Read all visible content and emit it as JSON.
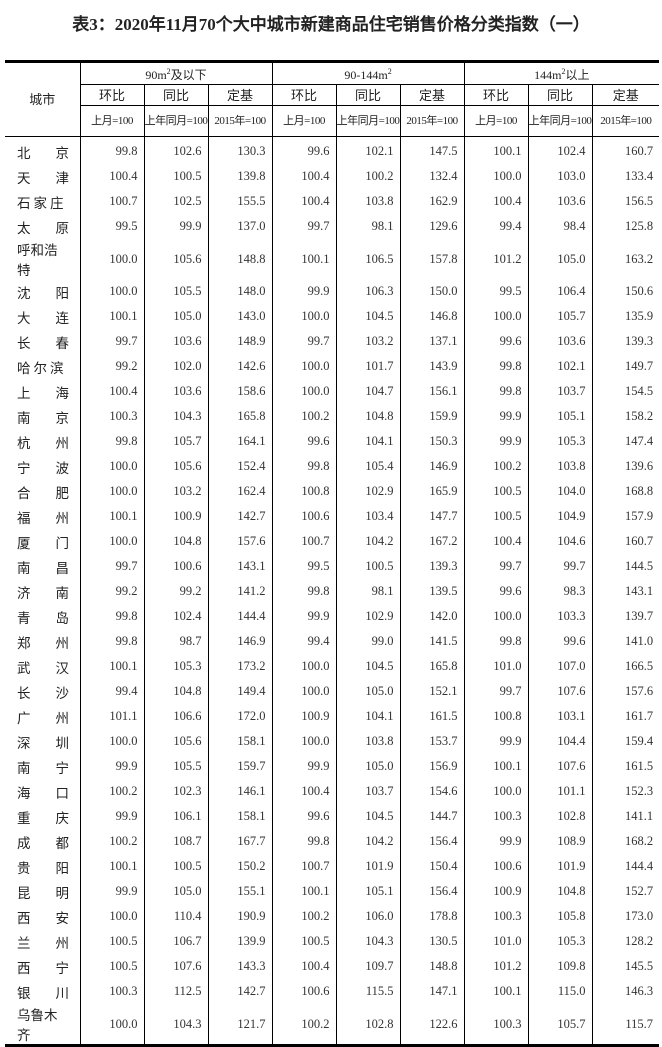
{
  "title": "表3：2020年11月70个大中城市新建商品住宅销售价格分类指数（一）",
  "header": {
    "city_label": "城市",
    "groups": [
      {
        "pre": "90m",
        "sup": "2",
        "post": "及以下"
      },
      {
        "pre": "90-144m",
        "sup": "2",
        "post": ""
      },
      {
        "pre": "144m",
        "sup": "2",
        "post": "以上"
      }
    ],
    "sub_labels": [
      "环比",
      "同比",
      "定基"
    ],
    "base_labels": [
      "上月=100",
      "上年同月=100",
      "2015年=100"
    ]
  },
  "rows": [
    {
      "city": "北京",
      "values": [
        "99.8",
        "102.6",
        "130.3",
        "99.6",
        "102.1",
        "147.5",
        "100.1",
        "102.4",
        "160.7"
      ]
    },
    {
      "city": "天津",
      "values": [
        "100.4",
        "100.5",
        "139.8",
        "100.4",
        "100.2",
        "132.4",
        "100.0",
        "103.0",
        "133.4"
      ]
    },
    {
      "city": "石家庄",
      "values": [
        "100.7",
        "102.5",
        "155.5",
        "100.4",
        "103.8",
        "162.9",
        "100.4",
        "103.6",
        "156.5"
      ]
    },
    {
      "city": "太原",
      "values": [
        "99.5",
        "99.9",
        "137.0",
        "99.7",
        "98.1",
        "129.6",
        "99.4",
        "98.4",
        "125.8"
      ]
    },
    {
      "city": "呼和浩特",
      "values": [
        "100.0",
        "105.6",
        "148.8",
        "100.1",
        "106.5",
        "157.8",
        "101.2",
        "105.0",
        "163.2"
      ]
    },
    {
      "city": "沈阳",
      "values": [
        "100.0",
        "105.5",
        "148.0",
        "99.9",
        "106.3",
        "150.0",
        "99.5",
        "106.4",
        "150.6"
      ]
    },
    {
      "city": "大连",
      "values": [
        "100.1",
        "105.0",
        "143.0",
        "100.0",
        "104.5",
        "146.8",
        "100.0",
        "105.7",
        "135.9"
      ]
    },
    {
      "city": "长春",
      "values": [
        "99.7",
        "103.6",
        "148.9",
        "99.7",
        "103.2",
        "137.1",
        "99.6",
        "103.6",
        "139.3"
      ]
    },
    {
      "city": "哈尔滨",
      "values": [
        "99.2",
        "102.0",
        "142.6",
        "100.0",
        "101.7",
        "143.9",
        "99.8",
        "102.1",
        "149.7"
      ]
    },
    {
      "city": "上海",
      "values": [
        "100.4",
        "103.6",
        "158.6",
        "100.0",
        "104.7",
        "156.1",
        "99.8",
        "103.7",
        "154.5"
      ]
    },
    {
      "city": "南京",
      "values": [
        "100.3",
        "104.3",
        "165.8",
        "100.2",
        "104.8",
        "159.9",
        "99.9",
        "105.1",
        "158.2"
      ]
    },
    {
      "city": "杭州",
      "values": [
        "99.8",
        "105.7",
        "164.1",
        "99.6",
        "104.1",
        "150.3",
        "99.9",
        "105.3",
        "147.4"
      ]
    },
    {
      "city": "宁波",
      "values": [
        "100.0",
        "105.6",
        "152.4",
        "99.8",
        "105.4",
        "146.9",
        "100.2",
        "103.8",
        "139.6"
      ]
    },
    {
      "city": "合肥",
      "values": [
        "100.0",
        "103.2",
        "162.4",
        "100.8",
        "102.9",
        "165.9",
        "100.5",
        "104.0",
        "168.8"
      ]
    },
    {
      "city": "福州",
      "values": [
        "100.1",
        "100.9",
        "142.7",
        "100.6",
        "103.4",
        "147.7",
        "100.5",
        "104.9",
        "157.9"
      ]
    },
    {
      "city": "厦门",
      "values": [
        "100.0",
        "104.8",
        "157.6",
        "100.7",
        "104.2",
        "167.2",
        "100.4",
        "104.6",
        "160.7"
      ]
    },
    {
      "city": "南昌",
      "values": [
        "99.7",
        "100.6",
        "143.1",
        "99.5",
        "100.5",
        "139.3",
        "99.7",
        "99.7",
        "144.5"
      ]
    },
    {
      "city": "济南",
      "values": [
        "99.2",
        "99.2",
        "141.2",
        "99.8",
        "98.1",
        "139.5",
        "99.6",
        "98.3",
        "143.1"
      ]
    },
    {
      "city": "青岛",
      "values": [
        "99.8",
        "102.4",
        "144.4",
        "99.9",
        "102.9",
        "142.0",
        "100.0",
        "103.3",
        "139.7"
      ]
    },
    {
      "city": "郑州",
      "values": [
        "99.8",
        "98.7",
        "146.9",
        "99.4",
        "99.0",
        "141.5",
        "99.8",
        "99.6",
        "141.0"
      ]
    },
    {
      "city": "武汉",
      "values": [
        "100.1",
        "105.3",
        "173.2",
        "100.0",
        "104.5",
        "165.8",
        "101.0",
        "107.0",
        "166.5"
      ]
    },
    {
      "city": "长沙",
      "values": [
        "99.4",
        "104.8",
        "149.4",
        "100.0",
        "105.0",
        "152.1",
        "99.7",
        "107.6",
        "157.6"
      ]
    },
    {
      "city": "广州",
      "values": [
        "101.1",
        "106.6",
        "172.0",
        "100.9",
        "104.1",
        "161.5",
        "100.8",
        "103.1",
        "161.7"
      ]
    },
    {
      "city": "深圳",
      "values": [
        "100.0",
        "105.6",
        "158.1",
        "100.0",
        "103.8",
        "153.7",
        "99.9",
        "104.4",
        "159.4"
      ]
    },
    {
      "city": "南宁",
      "values": [
        "99.9",
        "105.5",
        "159.7",
        "99.9",
        "105.0",
        "156.9",
        "100.1",
        "107.6",
        "161.5"
      ]
    },
    {
      "city": "海口",
      "values": [
        "100.2",
        "102.3",
        "146.1",
        "100.4",
        "103.7",
        "154.6",
        "100.0",
        "101.1",
        "152.3"
      ]
    },
    {
      "city": "重庆",
      "values": [
        "99.9",
        "106.1",
        "158.1",
        "99.6",
        "104.5",
        "144.7",
        "100.3",
        "102.8",
        "141.1"
      ]
    },
    {
      "city": "成都",
      "values": [
        "100.2",
        "108.7",
        "167.7",
        "99.8",
        "104.2",
        "156.4",
        "99.9",
        "108.9",
        "168.2"
      ]
    },
    {
      "city": "贵阳",
      "values": [
        "100.1",
        "100.5",
        "150.2",
        "100.7",
        "101.9",
        "150.4",
        "100.6",
        "101.9",
        "144.4"
      ]
    },
    {
      "city": "昆明",
      "values": [
        "99.9",
        "105.0",
        "155.1",
        "100.1",
        "105.1",
        "156.4",
        "100.9",
        "104.8",
        "152.7"
      ]
    },
    {
      "city": "西安",
      "values": [
        "100.0",
        "110.4",
        "190.9",
        "100.2",
        "106.0",
        "178.8",
        "100.3",
        "105.8",
        "173.0"
      ]
    },
    {
      "city": "兰州",
      "values": [
        "100.5",
        "106.7",
        "139.9",
        "100.5",
        "104.3",
        "130.5",
        "101.0",
        "105.3",
        "128.2"
      ]
    },
    {
      "city": "西宁",
      "values": [
        "100.5",
        "107.6",
        "143.3",
        "100.4",
        "109.7",
        "148.8",
        "101.2",
        "109.8",
        "145.5"
      ]
    },
    {
      "city": "银川",
      "values": [
        "100.3",
        "112.5",
        "142.7",
        "100.6",
        "115.5",
        "147.1",
        "100.1",
        "115.0",
        "146.3"
      ]
    },
    {
      "city": "乌鲁木齐",
      "values": [
        "100.0",
        "104.3",
        "121.7",
        "100.2",
        "102.8",
        "122.6",
        "100.3",
        "105.7",
        "115.7"
      ]
    }
  ]
}
